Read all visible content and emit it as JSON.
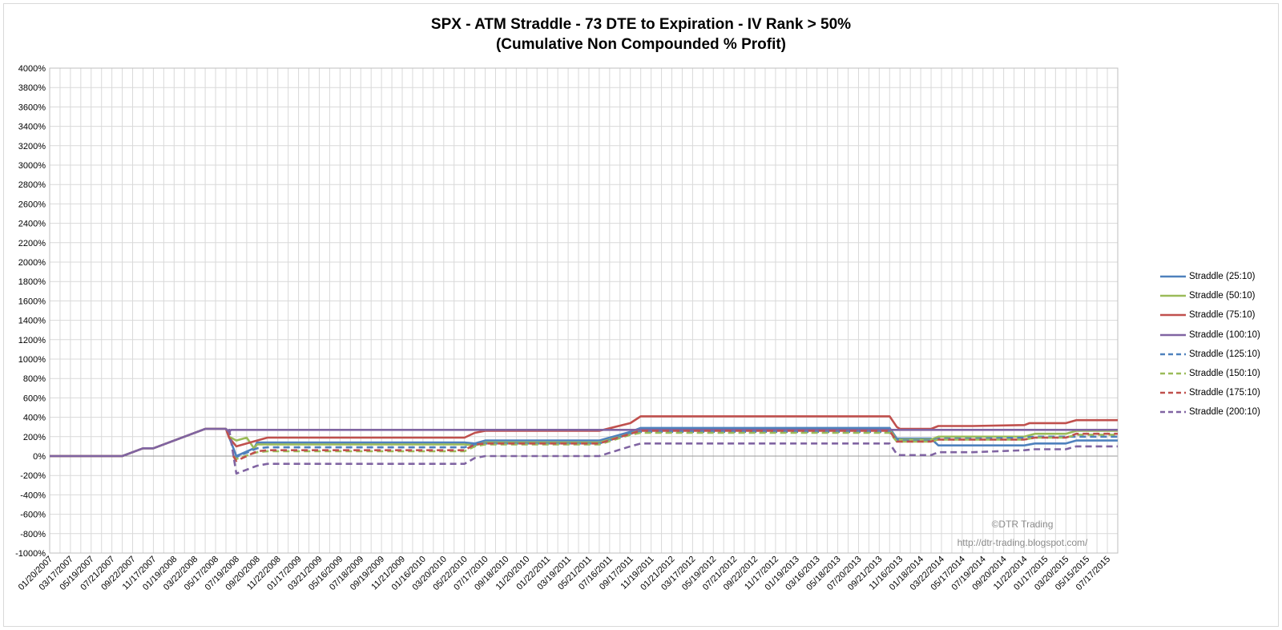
{
  "chart_data": {
    "type": "line",
    "title": "SPX - ATM Straddle - 73 DTE to Expiration - IV Rank > 50%",
    "subtitle": "(Cumulative Non Compounded % Profit)",
    "xlabel": "",
    "ylabel": "",
    "ylim": [
      -1000,
      4000
    ],
    "y_ticks": [
      "-1000%",
      "-800%",
      "-600%",
      "-400%",
      "-200%",
      "0%",
      "200%",
      "400%",
      "600%",
      "800%",
      "1000%",
      "1200%",
      "1400%",
      "1600%",
      "1800%",
      "2000%",
      "2200%",
      "2400%",
      "2600%",
      "2800%",
      "3000%",
      "3200%",
      "3400%",
      "3600%",
      "3800%",
      "4000%"
    ],
    "x_ticks": [
      "01/20/2007",
      "03/17/2007",
      "05/19/2007",
      "07/21/2007",
      "09/22/2007",
      "11/17/2007",
      "01/19/2008",
      "03/22/2008",
      "05/17/2008",
      "07/19/2008",
      "09/20/2008",
      "11/22/2008",
      "01/17/2009",
      "03/21/2009",
      "05/16/2009",
      "07/18/2009",
      "09/19/2009",
      "11/21/2009",
      "01/16/2010",
      "03/20/2010",
      "05/22/2010",
      "07/17/2010",
      "09/18/2010",
      "11/20/2010",
      "01/22/2011",
      "03/19/2011",
      "05/21/2011",
      "07/16/2011",
      "09/17/2011",
      "11/19/2011",
      "01/21/2012",
      "03/17/2012",
      "05/19/2012",
      "07/21/2012",
      "09/22/2012",
      "11/17/2012",
      "01/19/2013",
      "03/16/2013",
      "05/18/2013",
      "07/20/2013",
      "09/21/2013",
      "11/16/2013",
      "01/18/2014",
      "03/22/2014",
      "05/17/2014",
      "07/19/2014",
      "09/20/2014",
      "11/22/2014",
      "01/17/2015",
      "03/20/2015",
      "05/15/2015",
      "07/17/2015"
    ],
    "grid": true,
    "legend_position": "right",
    "watermark": "©DTR Trading",
    "watermark_url": "http://dtr-trading.blogspot.com/",
    "series": [
      {
        "name": "Straddle  (25:10)",
        "color": "#4f81bd",
        "dash": false,
        "points": [
          [
            0,
            0
          ],
          [
            7,
            0
          ],
          [
            9,
            80
          ],
          [
            10,
            80
          ],
          [
            15,
            280
          ],
          [
            17,
            280
          ],
          [
            18,
            0
          ],
          [
            19.7,
            80
          ],
          [
            20,
            140
          ],
          [
            40,
            140
          ],
          [
            41,
            130
          ],
          [
            42,
            160
          ],
          [
            53,
            160
          ],
          [
            56,
            250
          ],
          [
            57,
            290
          ],
          [
            81,
            290
          ],
          [
            81.7,
            180
          ],
          [
            82,
            180
          ],
          [
            85,
            180
          ],
          [
            85.7,
            110
          ],
          [
            89,
            110
          ],
          [
            94,
            110
          ],
          [
            95,
            130
          ],
          [
            98,
            130
          ],
          [
            99,
            160
          ],
          [
            103,
            160
          ]
        ]
      },
      {
        "name": "Straddle  (50:10)",
        "color": "#9bbb59",
        "dash": false,
        "points": [
          [
            0,
            0
          ],
          [
            7,
            0
          ],
          [
            9,
            80
          ],
          [
            10,
            80
          ],
          [
            15,
            280
          ],
          [
            17,
            280
          ],
          [
            17.3,
            200
          ],
          [
            18,
            160
          ],
          [
            19,
            190
          ],
          [
            19.7,
            80
          ],
          [
            20,
            120
          ],
          [
            40,
            120
          ],
          [
            41,
            110
          ],
          [
            42,
            140
          ],
          [
            53,
            140
          ],
          [
            56,
            230
          ],
          [
            57,
            270
          ],
          [
            81,
            270
          ],
          [
            81.7,
            170
          ],
          [
            82,
            170
          ],
          [
            85,
            170
          ],
          [
            85.7,
            200
          ],
          [
            89,
            200
          ],
          [
            94,
            200
          ],
          [
            95,
            230
          ],
          [
            98,
            230
          ],
          [
            99,
            260
          ],
          [
            103,
            260
          ]
        ]
      },
      {
        "name": "Straddle  (75:10)",
        "color": "#c0504d",
        "dash": false,
        "points": [
          [
            0,
            0
          ],
          [
            7,
            0
          ],
          [
            9,
            80
          ],
          [
            10,
            80
          ],
          [
            15,
            280
          ],
          [
            17,
            280
          ],
          [
            17.3,
            190
          ],
          [
            18,
            100
          ],
          [
            20,
            160
          ],
          [
            21,
            190
          ],
          [
            40,
            190
          ],
          [
            41,
            240
          ],
          [
            42,
            260
          ],
          [
            53,
            260
          ],
          [
            56,
            340
          ],
          [
            57,
            410
          ],
          [
            81,
            410
          ],
          [
            81.7,
            300
          ],
          [
            82,
            280
          ],
          [
            85,
            280
          ],
          [
            85.7,
            310
          ],
          [
            89,
            310
          ],
          [
            94,
            320
          ],
          [
            94.5,
            340
          ],
          [
            98,
            340
          ],
          [
            99,
            370
          ],
          [
            103,
            370
          ]
        ]
      },
      {
        "name": "Straddle  (100:10)",
        "color": "#8064a2",
        "dash": false,
        "points": [
          [
            0,
            0
          ],
          [
            7,
            0
          ],
          [
            9,
            80
          ],
          [
            10,
            80
          ],
          [
            15,
            280
          ],
          [
            17,
            280
          ],
          [
            17.3,
            250
          ],
          [
            17.5,
            270
          ],
          [
            103,
            270
          ]
        ]
      },
      {
        "name": "Straddle  (125:10)",
        "color": "#4f81bd",
        "dash": true,
        "points": [
          [
            17.7,
            0
          ],
          [
            18,
            -10
          ],
          [
            20,
            80
          ],
          [
            21,
            90
          ],
          [
            40,
            90
          ],
          [
            41,
            120
          ],
          [
            42,
            130
          ],
          [
            53,
            130
          ],
          [
            56,
            230
          ],
          [
            57,
            250
          ],
          [
            81,
            250
          ],
          [
            81.7,
            170
          ],
          [
            82,
            160
          ],
          [
            85,
            160
          ],
          [
            85.7,
            180
          ],
          [
            89,
            180
          ],
          [
            94,
            190
          ],
          [
            95,
            200
          ],
          [
            98,
            200
          ],
          [
            99,
            200
          ],
          [
            103,
            200
          ]
        ]
      },
      {
        "name": "Straddle  (150:10)",
        "color": "#9bbb59",
        "dash": true,
        "points": [
          [
            17.7,
            0
          ],
          [
            18,
            -30
          ],
          [
            20,
            40
          ],
          [
            21,
            50
          ],
          [
            40,
            50
          ],
          [
            41,
            100
          ],
          [
            42,
            120
          ],
          [
            53,
            120
          ],
          [
            56,
            220
          ],
          [
            57,
            240
          ],
          [
            81,
            240
          ],
          [
            81.7,
            150
          ],
          [
            82,
            150
          ],
          [
            85,
            150
          ],
          [
            85.7,
            170
          ],
          [
            89,
            170
          ],
          [
            94,
            170
          ],
          [
            95,
            190
          ],
          [
            98,
            190
          ],
          [
            99,
            220
          ],
          [
            103,
            220
          ]
        ]
      },
      {
        "name": "Straddle  (175:10)",
        "color": "#c0504d",
        "dash": true,
        "points": [
          [
            17.7,
            0
          ],
          [
            18,
            -50
          ],
          [
            20,
            50
          ],
          [
            21,
            60
          ],
          [
            40,
            60
          ],
          [
            41,
            120
          ],
          [
            42,
            130
          ],
          [
            53,
            130
          ],
          [
            56,
            230
          ],
          [
            57,
            260
          ],
          [
            81,
            260
          ],
          [
            81.7,
            150
          ],
          [
            82,
            150
          ],
          [
            85,
            150
          ],
          [
            85.7,
            170
          ],
          [
            89,
            170
          ],
          [
            94,
            170
          ],
          [
            95,
            190
          ],
          [
            98,
            190
          ],
          [
            99,
            230
          ],
          [
            103,
            230
          ]
        ]
      },
      {
        "name": "Straddle  (200:10)",
        "color": "#8064a2",
        "dash": true,
        "points": [
          [
            17.3,
            280
          ],
          [
            18,
            -180
          ],
          [
            20,
            -100
          ],
          [
            21,
            -80
          ],
          [
            40,
            -80
          ],
          [
            41,
            -20
          ],
          [
            42,
            0
          ],
          [
            53,
            0
          ],
          [
            56,
            100
          ],
          [
            57,
            130
          ],
          [
            81,
            130
          ],
          [
            81.7,
            20
          ],
          [
            82,
            10
          ],
          [
            85,
            10
          ],
          [
            85.7,
            40
          ],
          [
            89,
            40
          ],
          [
            94,
            60
          ],
          [
            95,
            70
          ],
          [
            98,
            70
          ],
          [
            99,
            100
          ],
          [
            103,
            100
          ]
        ]
      }
    ]
  }
}
